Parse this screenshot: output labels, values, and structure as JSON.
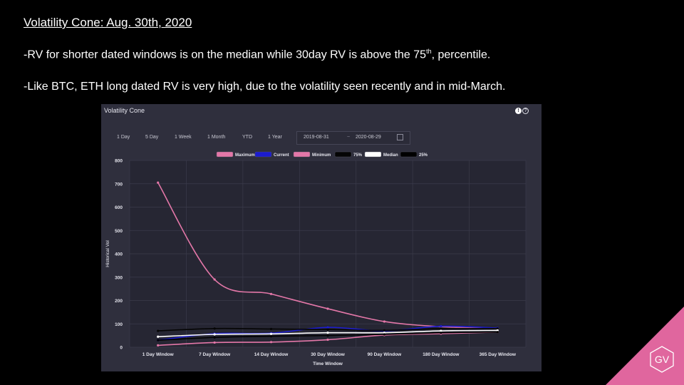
{
  "slide": {
    "title": "Volatility Cone: Aug. 30th, 2020",
    "bullet1_pre": "-RV for shorter dated windows is on the median while 30day RV is above the 75",
    "bullet1_sup": "th",
    "bullet1_post": ", percentile.",
    "bullet2": "-Like BTC, ETH long dated RV is very high, due to the volatility seen recently and in mid-March.",
    "logo_text": "GV",
    "logo_color": "#e0669e"
  },
  "panel": {
    "title": "Volatility Cone",
    "ranges": [
      "1 Day",
      "5 Day",
      "1 Week",
      "1 Month",
      "YTD",
      "1 Year"
    ],
    "date_start": "2019-08-31",
    "date_sep": "~",
    "date_end": "2020-08-29",
    "icons": [
      "info-icon",
      "help-icon",
      "calendar-icon"
    ]
  },
  "chart_data": {
    "type": "line",
    "xlabel": "Time Window",
    "ylabel": "Historical Vol",
    "categories": [
      "1 Day Window",
      "7 Day Window",
      "14 Day Window",
      "30 Day Window",
      "90 Day Window",
      "180 Day Window",
      "365 Day Window"
    ],
    "ylim": [
      0,
      800
    ],
    "yticks": [
      0,
      100,
      200,
      300,
      400,
      500,
      600,
      700,
      800
    ],
    "grid": true,
    "legend_position": "top-center",
    "series": [
      {
        "name": "Maximum",
        "color": "#e377a8",
        "values": [
          705,
          290,
          228,
          165,
          110,
          88,
          80
        ]
      },
      {
        "name": "Current",
        "color": "#1c1ccf",
        "values": [
          30,
          58,
          60,
          85,
          70,
          90,
          82
        ]
      },
      {
        "name": "Minimum",
        "color": "#e377a8",
        "values": [
          8,
          20,
          22,
          32,
          52,
          58,
          65
        ]
      },
      {
        "name": "75%",
        "color": "#050505",
        "values": [
          70,
          80,
          78,
          76,
          72,
          80,
          80
        ]
      },
      {
        "name": "Median",
        "color": "#ffffff",
        "values": [
          45,
          55,
          57,
          62,
          62,
          70,
          72
        ]
      },
      {
        "name": "25%",
        "color": "#000000",
        "values": [
          30,
          42,
          47,
          50,
          55,
          62,
          65
        ]
      }
    ]
  }
}
